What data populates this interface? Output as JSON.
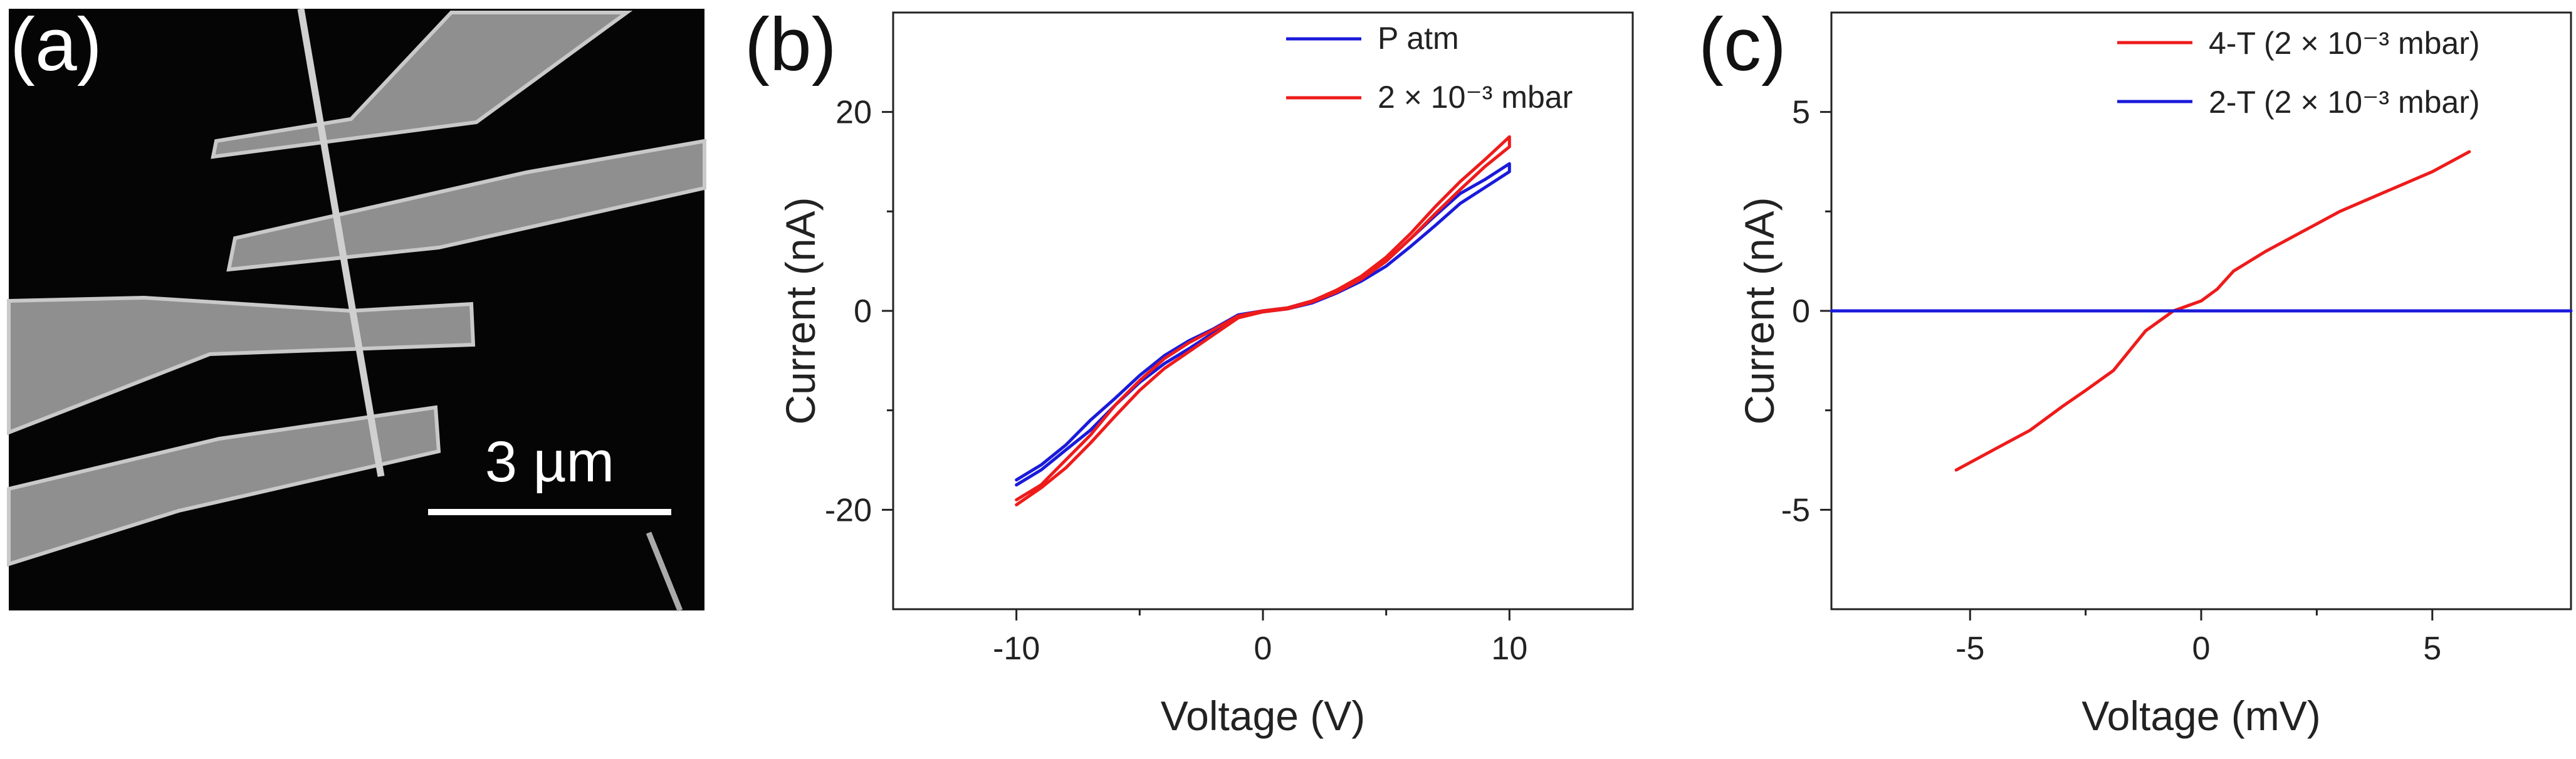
{
  "panels": {
    "a": {
      "label": "(a)",
      "scale_bar_text": "3 µm"
    },
    "b": {
      "label": "(b)"
    },
    "c": {
      "label": "(c)"
    }
  },
  "chart_data": [
    {
      "panel": "b",
      "type": "line",
      "title": "",
      "xlabel": "Voltage (V)",
      "ylabel": "Current (nA)",
      "xlim": [
        -15,
        15
      ],
      "ylim": [
        -30,
        30
      ],
      "xticks": [
        -10,
        0,
        10
      ],
      "yticks": [
        -20,
        0,
        20
      ],
      "legend_position": "top-right",
      "series": [
        {
          "name": "P atm",
          "color": "#1a1adb",
          "x": [
            -10,
            -9,
            -8,
            -7,
            -6,
            -5,
            -4,
            -3,
            -2,
            -1,
            0,
            1,
            2,
            3,
            4,
            5,
            6,
            7,
            8,
            9,
            10,
            10,
            9,
            8,
            7,
            6,
            5,
            4,
            3,
            2,
            1,
            0,
            -1,
            -2,
            -3,
            -4,
            -5,
            -6,
            -7,
            -8,
            -9,
            -10
          ],
          "y": [
            -17,
            -15.5,
            -13.5,
            -11,
            -8.8,
            -6.5,
            -4.5,
            -3,
            -1.8,
            -0.4,
            0,
            0.3,
            1,
            2,
            3.3,
            5,
            7.3,
            9.6,
            11.8,
            13.2,
            14.8,
            14,
            12.4,
            10.8,
            8.6,
            6.5,
            4.5,
            3,
            1.8,
            0.8,
            0.2,
            -0.1,
            -0.6,
            -2.2,
            -3.8,
            -5.3,
            -7.2,
            -9.5,
            -12,
            -14,
            -16,
            -17.5
          ]
        },
        {
          "name": "2 × 10⁻³ mbar",
          "color": "#ee1b1b",
          "x": [
            -10,
            -9,
            -8,
            -7,
            -6,
            -5,
            -4,
            -3,
            -2,
            -1,
            0,
            1,
            2,
            3,
            4,
            5,
            6,
            7,
            8,
            9,
            10,
            10,
            9,
            8,
            7,
            6,
            5,
            4,
            3,
            2,
            1,
            0,
            -1,
            -2,
            -3,
            -4,
            -5,
            -6,
            -7,
            -8,
            -9,
            -10
          ],
          "y": [
            -19,
            -17.5,
            -15,
            -12.5,
            -9.5,
            -7,
            -4.8,
            -3.2,
            -1.9,
            -0.5,
            0,
            0.3,
            1,
            2.1,
            3.5,
            5.4,
            7.8,
            10.5,
            13,
            15.2,
            17.5,
            16.5,
            14.5,
            12.2,
            9.8,
            7.3,
            5,
            3.2,
            1.9,
            0.9,
            0.2,
            -0.1,
            -0.7,
            -2.4,
            -4.1,
            -5.8,
            -8,
            -10.6,
            -13.3,
            -15.8,
            -17.8,
            -19.5
          ]
        }
      ]
    },
    {
      "panel": "c",
      "type": "line",
      "title": "",
      "xlabel": "Voltage (mV)",
      "ylabel": "Current (nA)",
      "xlim": [
        -8,
        8
      ],
      "ylim": [
        -7.5,
        7.5
      ],
      "xticks": [
        -5,
        0,
        5
      ],
      "yticks": [
        -5,
        0,
        5
      ],
      "legend_position": "top-right",
      "series": [
        {
          "name": "4-T (2 × 10⁻³ mbar)",
          "color": "#ee1b1b",
          "x": [
            -5.3,
            -4.5,
            -3.7,
            -3,
            -2.5,
            -1.9,
            -1.2,
            -0.6,
            0,
            0.35,
            0.7,
            1.4,
            2.2,
            3,
            4,
            5,
            5.8
          ],
          "y": [
            -4,
            -3.5,
            -3,
            -2.4,
            -2,
            -1.5,
            -0.5,
            0,
            0.25,
            0.55,
            1,
            1.5,
            2,
            2.5,
            3,
            3.5,
            4
          ]
        },
        {
          "name": "2-T (2 × 10⁻³ mbar)",
          "color": "#1a1adb",
          "x": [
            -8,
            8
          ],
          "y": [
            0,
            0
          ]
        }
      ]
    }
  ]
}
